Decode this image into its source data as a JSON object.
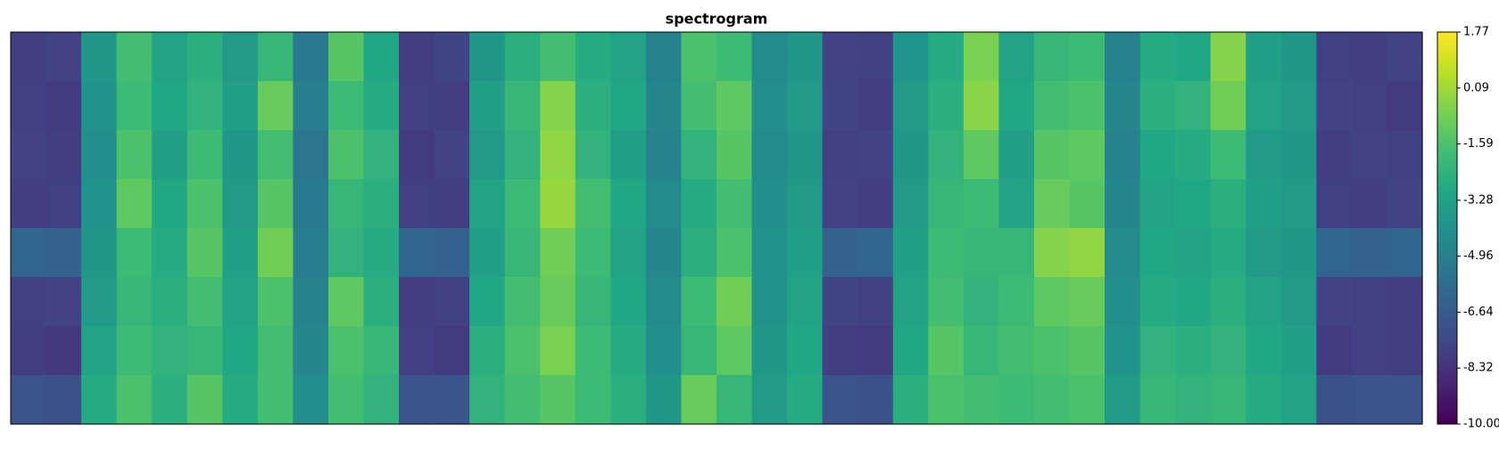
{
  "chart_data": {
    "type": "heatmap",
    "title": "spectrogram",
    "colormap": "viridis",
    "clim": [
      -10,
      1.77
    ],
    "cticks": [
      1.77,
      0.09,
      -1.59,
      -3.28,
      -4.96,
      -6.64,
      -8.32,
      {
        "value": -10,
        "label": "-10.00"
      }
    ],
    "z": [
      [
        -7.9,
        -7.7,
        -3.8,
        -1.8,
        -3.2,
        -2.6,
        -3.6,
        -2.2,
        -5.2,
        -1.4,
        -3.0,
        -7.9,
        -7.6,
        -3.8,
        -2.6,
        -1.8,
        -2.8,
        -3.2,
        -4.8,
        -1.6,
        -2.0,
        -4.4,
        -3.8,
        -7.7,
        -7.8,
        -3.9,
        -2.8,
        -0.6,
        -3.2,
        -2.2,
        -2.0,
        -4.8,
        -2.8,
        -3.0,
        -0.4,
        -3.4,
        -3.8,
        -7.8,
        -7.9,
        -7.7
      ],
      [
        -7.8,
        -8.0,
        -4.0,
        -2.0,
        -3.0,
        -2.4,
        -3.4,
        -1.0,
        -5.0,
        -2.0,
        -2.8,
        -7.8,
        -7.9,
        -3.4,
        -2.2,
        -0.4,
        -2.6,
        -3.0,
        -4.6,
        -1.8,
        -1.2,
        -4.2,
        -3.6,
        -7.6,
        -7.9,
        -3.6,
        -2.6,
        -0.3,
        -3.0,
        -1.8,
        -1.6,
        -4.6,
        -2.6,
        -2.4,
        -0.8,
        -3.2,
        -3.6,
        -7.7,
        -7.8,
        -8.0
      ],
      [
        -7.7,
        -7.9,
        -4.2,
        -1.6,
        -3.4,
        -2.0,
        -3.8,
        -1.8,
        -5.4,
        -1.6,
        -2.4,
        -8.0,
        -7.7,
        -3.6,
        -2.4,
        -0.2,
        -2.4,
        -3.4,
        -4.8,
        -2.4,
        -1.4,
        -4.4,
        -3.8,
        -7.8,
        -7.7,
        -3.8,
        -2.4,
        -1.2,
        -3.4,
        -1.4,
        -1.2,
        -4.8,
        -3.0,
        -2.8,
        -2.0,
        -3.6,
        -3.8,
        -7.9,
        -7.7,
        -7.8
      ],
      [
        -7.9,
        -7.8,
        -4.0,
        -1.2,
        -3.0,
        -1.6,
        -3.6,
        -1.4,
        -5.2,
        -2.2,
        -2.6,
        -7.8,
        -7.9,
        -3.2,
        -2.0,
        -0.1,
        -1.8,
        -3.0,
        -4.4,
        -2.8,
        -1.8,
        -4.2,
        -3.6,
        -7.7,
        -7.9,
        -3.6,
        -2.2,
        -2.0,
        -3.2,
        -1.0,
        -1.4,
        -4.6,
        -3.2,
        -3.0,
        -2.6,
        -3.4,
        -3.6,
        -7.8,
        -7.9,
        -7.7
      ],
      [
        -6.2,
        -6.3,
        -3.8,
        -2.0,
        -2.8,
        -1.4,
        -3.4,
        -0.8,
        -5.0,
        -2.4,
        -2.8,
        -6.2,
        -6.3,
        -3.4,
        -2.2,
        -0.8,
        -2.0,
        -3.2,
        -4.6,
        -2.6,
        -1.6,
        -4.0,
        -3.4,
        -6.3,
        -6.2,
        -3.4,
        -2.0,
        -2.2,
        -2.2,
        -0.4,
        -0.2,
        -4.4,
        -3.0,
        -3.2,
        -2.8,
        -3.6,
        -3.8,
        -6.2,
        -6.3,
        -6.2
      ],
      [
        -7.8,
        -7.7,
        -3.6,
        -2.2,
        -2.6,
        -1.8,
        -3.2,
        -1.6,
        -4.8,
        -1.2,
        -2.6,
        -7.9,
        -7.8,
        -3.0,
        -1.8,
        -1.0,
        -2.2,
        -3.0,
        -4.4,
        -2.0,
        -0.8,
        -4.0,
        -3.2,
        -7.6,
        -7.8,
        -3.2,
        -1.8,
        -2.4,
        -2.0,
        -1.2,
        -1.0,
        -4.2,
        -2.8,
        -3.0,
        -2.6,
        -3.2,
        -3.6,
        -7.7,
        -7.8,
        -7.9
      ],
      [
        -7.9,
        -8.1,
        -3.2,
        -2.0,
        -2.4,
        -2.2,
        -3.0,
        -1.8,
        -4.6,
        -1.6,
        -2.2,
        -7.8,
        -8.0,
        -2.6,
        -1.6,
        -0.6,
        -2.0,
        -2.8,
        -4.2,
        -2.2,
        -1.2,
        -3.8,
        -3.0,
        -7.9,
        -8.0,
        -3.0,
        -1.4,
        -2.2,
        -1.8,
        -1.6,
        -1.4,
        -4.0,
        -2.4,
        -2.6,
        -2.4,
        -3.0,
        -3.4,
        -8.0,
        -7.8,
        -7.9
      ],
      [
        -7.0,
        -7.1,
        -2.8,
        -1.6,
        -2.6,
        -1.4,
        -2.8,
        -1.8,
        -4.2,
        -1.8,
        -2.4,
        -7.0,
        -6.9,
        -2.4,
        -1.8,
        -1.4,
        -2.0,
        -2.6,
        -3.8,
        -1.0,
        -2.2,
        -3.6,
        -2.8,
        -7.0,
        -7.1,
        -2.6,
        -1.6,
        -1.8,
        -2.0,
        -1.8,
        -1.6,
        -3.6,
        -2.2,
        -2.4,
        -2.2,
        -2.8,
        -3.2,
        -7.1,
        -7.0,
        -7.0
      ]
    ]
  }
}
